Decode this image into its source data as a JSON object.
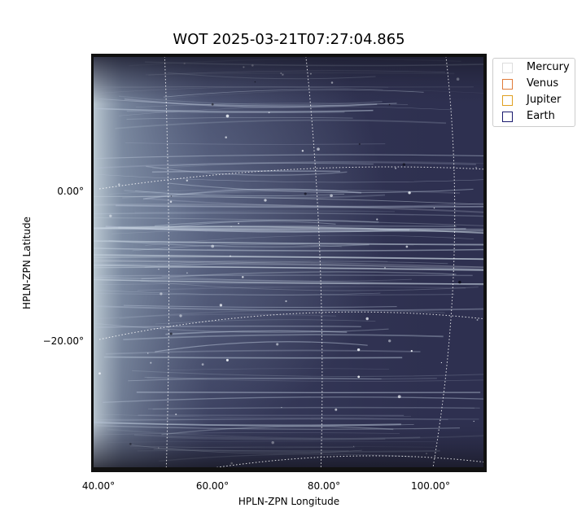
{
  "title": "WOT 2025-03-21T07:27:04.865",
  "xlabel": "HPLN-ZPN Longitude",
  "ylabel": "HPLN-ZPN Latitude",
  "xticks": [
    {
      "label": "40.00°",
      "value": 40
    },
    {
      "label": "60.00°",
      "value": 60
    },
    {
      "label": "80.00°",
      "value": 80
    },
    {
      "label": "100.00°",
      "value": 100
    }
  ],
  "yticks": [
    {
      "label": "0.00°",
      "value": 0
    },
    {
      "label": "−20.00°",
      "value": -20
    }
  ],
  "legend": {
    "items": [
      {
        "label": "Mercury",
        "color": "#dddddd"
      },
      {
        "label": "Venus",
        "color": "#e07b39"
      },
      {
        "label": "Jupiter",
        "color": "#e0a020"
      },
      {
        "label": "Earth",
        "color": "#1a1a6e"
      }
    ]
  },
  "colors": {
    "background_dark": "#2a2b45",
    "streak": "#b8c4d6",
    "grid": "#ffffff"
  }
}
